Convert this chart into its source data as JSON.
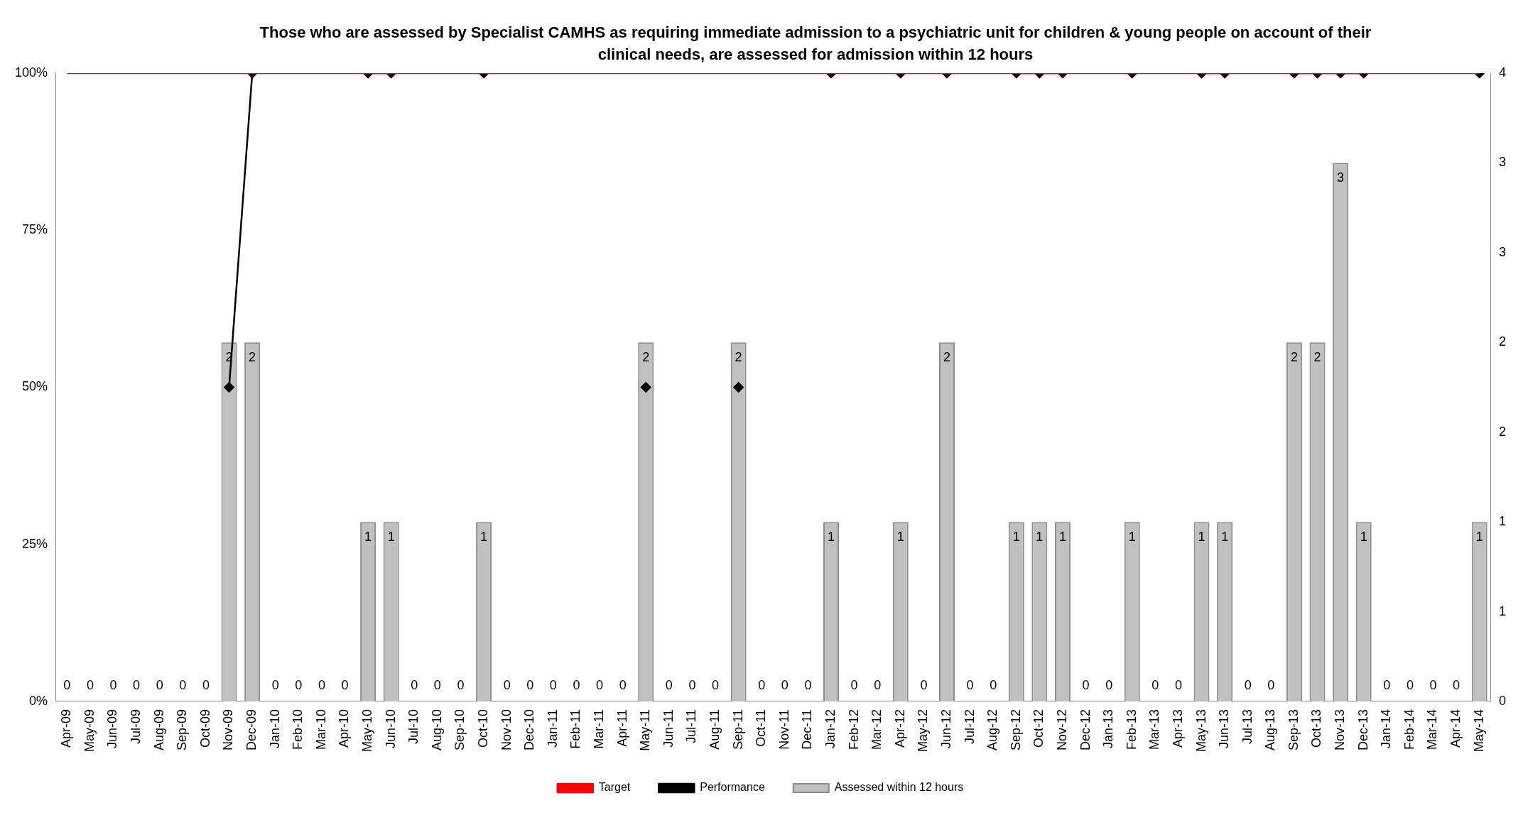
{
  "chart_data": {
    "type": "bar",
    "title": "Those who are assessed by Specialist CAMHS as requiring immediate admission to a psychiatric unit for children & young people on account of their clinical needs, are assessed for admission within 12 hours",
    "categories": [
      "Apr-09",
      "May-09",
      "Jun-09",
      "Jul-09",
      "Aug-09",
      "Sep-09",
      "Oct-09",
      "Nov-09",
      "Dec-09",
      "Jan-10",
      "Feb-10",
      "Mar-10",
      "Apr-10",
      "May-10",
      "Jun-10",
      "Jul-10",
      "Aug-10",
      "Sep-10",
      "Oct-10",
      "Nov-10",
      "Dec-10",
      "Jan-11",
      "Feb-11",
      "Mar-11",
      "Apr-11",
      "May-11",
      "Jun-11",
      "Jul-11",
      "Aug-11",
      "Sep-11",
      "Oct-11",
      "Nov-11",
      "Dec-11",
      "Jan-12",
      "Feb-12",
      "Mar-12",
      "Apr-12",
      "May-12",
      "Jun-12",
      "Jul-12",
      "Aug-12",
      "Sep-12",
      "Oct-12",
      "Nov-12",
      "Dec-12",
      "Jan-13",
      "Feb-13",
      "Mar-13",
      "Apr-13",
      "May-13",
      "Jun-13",
      "Jul-13",
      "Aug-13",
      "Sep-13",
      "Oct-13",
      "Nov-13",
      "Dec-13",
      "Jan-14",
      "Feb-14",
      "Mar-14",
      "Apr-14",
      "May-14"
    ],
    "series": [
      {
        "name": "Assessed within 12 hours",
        "axis": "y2",
        "color": "#c0c0c0",
        "values": [
          0,
          0,
          0,
          0,
          0,
          0,
          0,
          2,
          2,
          0,
          0,
          0,
          0,
          1,
          1,
          0,
          0,
          0,
          1,
          0,
          0,
          0,
          0,
          0,
          0,
          2,
          0,
          0,
          0,
          2,
          0,
          0,
          0,
          1,
          0,
          0,
          1,
          0,
          2,
          0,
          0,
          1,
          1,
          1,
          0,
          0,
          1,
          0,
          0,
          1,
          1,
          0,
          0,
          2,
          2,
          3,
          1,
          0,
          0,
          0,
          0,
          1
        ],
        "value_labels": [
          "0",
          "0",
          "0",
          "0",
          "0",
          "0",
          "0",
          "2",
          "2",
          "0",
          "0",
          "0",
          "0",
          "1",
          "1",
          "0",
          "0",
          "0",
          "1",
          "0",
          "0",
          "0",
          "0",
          "0",
          "0",
          "2",
          "0",
          "0",
          "0",
          "2",
          "0",
          "0",
          "0",
          "1",
          "0",
          "0",
          "1",
          "0",
          "2",
          "0",
          "0",
          "1",
          "1",
          "1",
          "0",
          "0",
          "1",
          "0",
          "0",
          "1",
          "1",
          "0",
          "0",
          "2",
          "2",
          "3",
          "1",
          "0",
          "0",
          "0",
          "0",
          "1"
        ]
      },
      {
        "name": "Performance",
        "type": "line",
        "color": "#000000",
        "marker": "diamond",
        "values": [
          null,
          null,
          null,
          null,
          null,
          null,
          null,
          50,
          100,
          null,
          null,
          null,
          null,
          100,
          100,
          null,
          null,
          null,
          100,
          null,
          null,
          null,
          null,
          null,
          null,
          50,
          null,
          null,
          null,
          50,
          null,
          null,
          null,
          100,
          null,
          null,
          100,
          null,
          100,
          null,
          null,
          100,
          100,
          100,
          null,
          null,
          100,
          null,
          null,
          100,
          100,
          null,
          null,
          100,
          100,
          100,
          100,
          null,
          null,
          null,
          null,
          100
        ]
      },
      {
        "name": "Target",
        "type": "line",
        "color": "#ff0000",
        "marker": "none",
        "values": [
          100,
          100,
          100,
          100,
          100,
          100,
          100,
          100,
          100,
          100,
          100,
          100,
          100,
          100,
          100,
          100,
          100,
          100,
          100,
          100,
          100,
          100,
          100,
          100,
          100,
          100,
          100,
          100,
          100,
          100,
          100,
          100,
          100,
          100,
          100,
          100,
          100,
          100,
          100,
          100,
          100,
          100,
          100,
          100,
          100,
          100,
          100,
          100,
          100,
          100,
          100,
          100,
          100,
          100,
          100,
          100,
          100,
          100,
          100,
          100,
          100,
          100
        ]
      }
    ],
    "ylim": [
      0,
      100
    ],
    "yticks": [
      {
        "value": 0,
        "label": "0%"
      },
      {
        "value": 25,
        "label": "25%"
      },
      {
        "value": 50,
        "label": "50%"
      },
      {
        "value": 75,
        "label": "75%"
      },
      {
        "value": 100,
        "label": "100%"
      }
    ],
    "y2lim": [
      0,
      3.5
    ],
    "y2ticks": [
      0,
      {
        "value": 0.5,
        "label": "1"
      },
      1,
      {
        "value": 1.5,
        "label": "2"
      },
      2,
      {
        "value": 2.5,
        "label": "3"
      },
      3,
      {
        "value": 3.5,
        "label": "4"
      }
    ],
    "grid": false,
    "legend": "bottom"
  }
}
